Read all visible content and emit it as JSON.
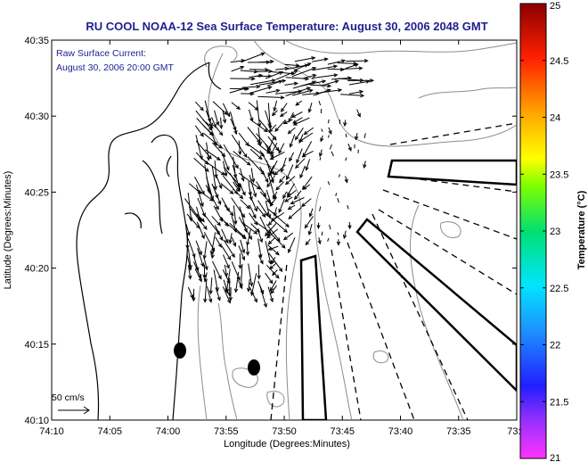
{
  "title": "RU COOL  NOAA-12  Sea Surface Temperature:  August 30, 2006 2048 GMT",
  "annotation": {
    "line1": "Raw Surface Current:",
    "line2": "August 30, 2006 20:00 GMT"
  },
  "scale_label": "50 cm/s",
  "axes": {
    "xlabel": "Longitude (Degrees:Minutes)",
    "ylabel": "Latitude (Degrees:Minutes)",
    "x_ticks": [
      "74:10",
      "74:05",
      "74:00",
      "73:55",
      "73:50",
      "73:45",
      "73:40",
      "73:35",
      "73:3"
    ],
    "y_ticks": [
      "40:10",
      "40:15",
      "40:20",
      "40:25",
      "40:30",
      "40:35"
    ]
  },
  "colorbar": {
    "label": "Temperature (°C)",
    "ticks": [
      "21",
      "21.5",
      "22",
      "22.5",
      "23",
      "23.5",
      "24",
      "24.5",
      "25"
    ],
    "range": [
      21,
      25
    ]
  },
  "colors": {
    "title": "#1f1f8f",
    "coast": "#000000",
    "bathymetry": "#8c8c8c",
    "vectors": "#000000"
  }
}
